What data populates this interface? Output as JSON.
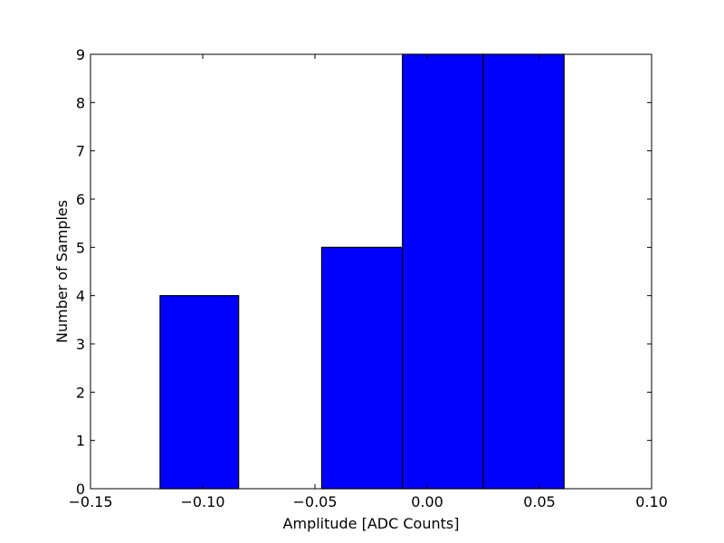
{
  "chart_data": {
    "type": "bar",
    "title": "",
    "xlabel": "Amplitude [ADC Counts]",
    "ylabel": "Number of Samples",
    "xlim": [
      -0.15,
      0.1
    ],
    "ylim": [
      0,
      9
    ],
    "x_ticks": [
      -0.15,
      -0.1,
      -0.05,
      0.0,
      0.05,
      0.1
    ],
    "x_tick_labels": [
      "−0.15",
      "−0.10",
      "−0.05",
      "0.00",
      "0.05",
      "0.10"
    ],
    "y_ticks": [
      0,
      1,
      2,
      3,
      4,
      5,
      6,
      7,
      8,
      9
    ],
    "y_tick_labels": [
      "0",
      "1",
      "2",
      "3",
      "4",
      "5",
      "6",
      "7",
      "8",
      "9"
    ],
    "bins": [
      {
        "start": -0.119,
        "end": -0.084,
        "value": 4
      },
      {
        "start": -0.084,
        "end": -0.047,
        "value": 0
      },
      {
        "start": -0.047,
        "end": -0.011,
        "value": 5
      },
      {
        "start": -0.011,
        "end": 0.025,
        "value": 9
      },
      {
        "start": 0.025,
        "end": 0.061,
        "value": 9
      }
    ],
    "bar_color": "#0000ff",
    "edge_color": "#000000",
    "grid": false
  }
}
